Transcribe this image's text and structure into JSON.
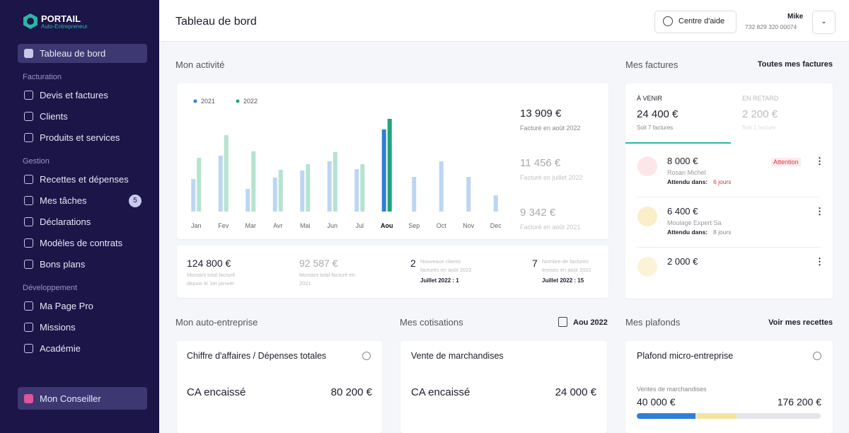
{
  "sidebar": {
    "logo_title": "PORTAIL",
    "logo_subtitle": "Auto-Entrepreneur",
    "active_item": "Tableau de bord",
    "sections": [
      {
        "title": "Facturation",
        "items": [
          "Devis et factures",
          "Clients",
          "Produits et services"
        ]
      },
      {
        "title": "Gestion",
        "items": [
          "Recettes et dépenses",
          "Mes tâches",
          "Déclarations",
          "Modèles de contrats",
          "Bons plans"
        ]
      },
      {
        "title": "Développement",
        "items": [
          "Ma Page Pro",
          "Missions",
          "Académie"
        ]
      }
    ],
    "tasks_badge": "5",
    "advisor": "Mon Conseiller"
  },
  "header": {
    "title": "Tableau de bord",
    "help": "Centre d'aide",
    "user_name": "Mike",
    "user_id": "732 829 320 00074"
  },
  "activity": {
    "title": "Mon activité",
    "chart_data": {
      "type": "bar",
      "categories": [
        "Jan",
        "Fev",
        "Mar",
        "Avr",
        "Mai",
        "Jun",
        "Jul",
        "Aou",
        "Sep",
        "Oct",
        "Nov",
        "Dec"
      ],
      "series": [
        {
          "name": "2021",
          "color": "#bcd6f2",
          "highlight_color": "#2f7fd6",
          "values": [
            46,
            79,
            32,
            48,
            58,
            71,
            60,
            116,
            49,
            71,
            49,
            23
          ]
        },
        {
          "name": "2022",
          "color": "#b5e3cf",
          "highlight_color": "#1fa67a",
          "values": [
            76,
            108,
            85,
            59,
            67,
            84,
            67,
            131,
            null,
            null,
            null,
            null
          ]
        }
      ],
      "ylim": [
        0,
        140
      ],
      "selected": 7
    },
    "stats": [
      {
        "amount": "13 909 €",
        "label": "Facturé en août 2022"
      },
      {
        "amount": "11 456 €",
        "label": "Facturé en juillet 2022"
      },
      {
        "amount": "9 342 €",
        "label": "Facturé en août 2021"
      }
    ],
    "summary": [
      {
        "value": "124 800 €",
        "label": "Montant total facturé depuis le 1er janvier"
      },
      {
        "value": "92 587 €",
        "label": "Montant total facturé en 2021"
      },
      {
        "value": "2",
        "label": "Nouveaux clients facturés en août 2022",
        "compare": "Juillet 2022 : 1"
      },
      {
        "value": "7",
        "label": "Nombre de factures émises en août 2022",
        "compare": "Juillet 2022 : 15"
      }
    ]
  },
  "invoices": {
    "title": "Mes factures",
    "link": "Toutes mes factures",
    "tabs": [
      {
        "label": "À VENIR",
        "amount": "24 400 €",
        "note": "Soit 7 factures"
      },
      {
        "label": "EN RETARD",
        "amount": "2 200 €",
        "note": "Soit 1 facture"
      }
    ],
    "items": [
      {
        "amount": "8 000 €",
        "client": "Rosan Michel",
        "due_label": "Attendu dans:",
        "due": "6 jours",
        "badge": "Attention"
      },
      {
        "amount": "6 400 €",
        "client": "Moulage Expert Sa",
        "due_label": "Attendu dans:",
        "due": "8 jours"
      },
      {
        "amount": "2 000 €"
      }
    ]
  },
  "business": {
    "title": "Mon auto-entreprise",
    "card_title": "Chiffre d'affaires / Dépenses totales",
    "row_label": "CA encaissé",
    "row_value": "80 200 €"
  },
  "contributions": {
    "title": "Mes cotisations",
    "period": "Aou 2022",
    "card_title": "Vente de marchandises",
    "row_label": "CA encaissé",
    "row_value": "24 000 €"
  },
  "ceilings": {
    "title": "Mes plafonds",
    "link": "Voir mes recettes",
    "card_title": "Plafond micro-entreprise",
    "sub_label": "Ventes de marchandises",
    "current": "40 000 €",
    "limit": "176 200 €"
  }
}
